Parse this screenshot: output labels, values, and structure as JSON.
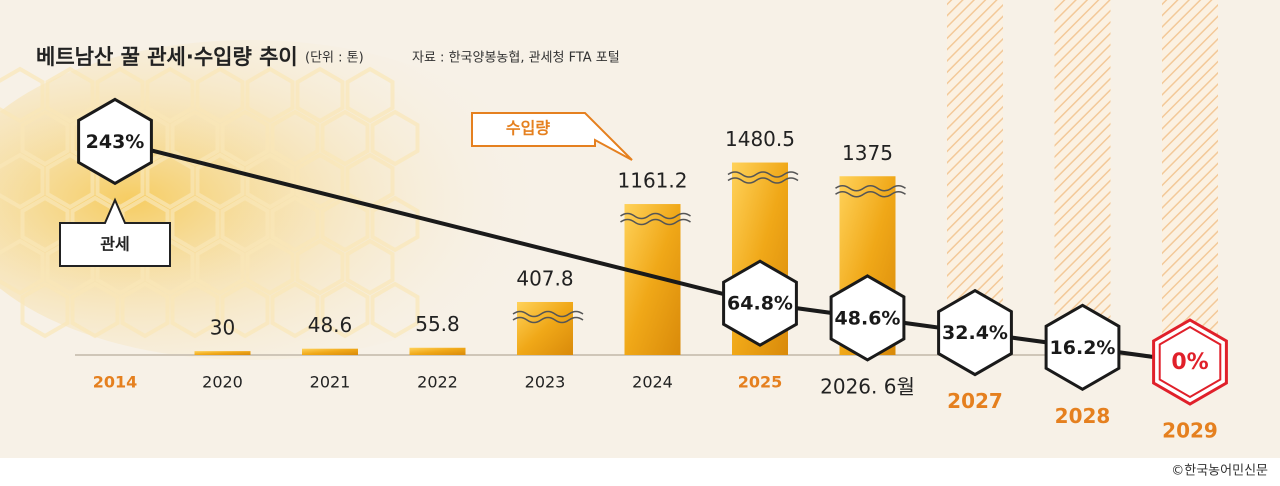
{
  "chart_data": {
    "type": "bar-line",
    "title": "베트남산 꿀 관세·수입량 추이",
    "unit": "(단위 : 톤)",
    "source": "자료 : 한국양봉농협, 관세청 FTA 포털",
    "credit": "©한국농어민신문",
    "categories": [
      "2014",
      "2020",
      "2021",
      "2022",
      "2023",
      "2024",
      "2025",
      "2026. 6월",
      "2027",
      "2028",
      "2029"
    ],
    "category_label_colors": [
      "#e5801f",
      "#222222",
      "#222222",
      "#222222",
      "#222222",
      "#222222",
      "#e5801f",
      "#222222",
      "#e5801f",
      "#e5801f",
      "#e5801f"
    ],
    "ylim": [
      0,
      1500
    ],
    "y2lim": [
      0,
      250
    ],
    "series": [
      {
        "name": "수입량",
        "type": "bar",
        "color": "#f2b01e",
        "values": [
          null,
          30,
          48.6,
          55.8,
          407.8,
          1161.2,
          1480.5,
          1375,
          null,
          null,
          null
        ]
      },
      {
        "name": "관세",
        "type": "line",
        "axis": "y2",
        "color": "#1a1a1a",
        "values": [
          243,
          null,
          null,
          null,
          null,
          null,
          64.8,
          48.6,
          32.4,
          16.2,
          0
        ],
        "value_labels": [
          "243%",
          null,
          null,
          null,
          null,
          null,
          "64.8%",
          "48.6%",
          "32.4%",
          "16.2%",
          "0%"
        ]
      }
    ]
  }
}
